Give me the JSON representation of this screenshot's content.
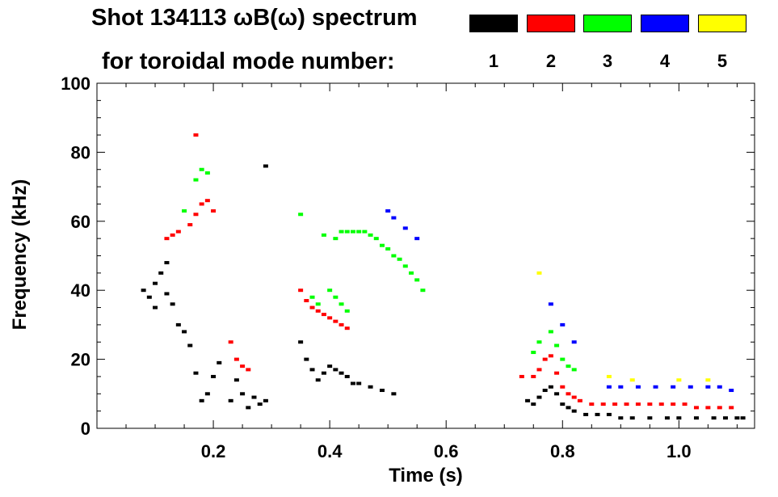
{
  "title": {
    "line1": "Shot 134113 ωB(ω) spectrum",
    "line2": "for toroidal mode number:"
  },
  "legend": [
    {
      "label": "1",
      "color": "#000000"
    },
    {
      "label": "2",
      "color": "#ff0000"
    },
    {
      "label": "3",
      "color": "#00ff00"
    },
    {
      "label": "4",
      "color": "#0000ff"
    },
    {
      "label": "5",
      "color": "#ffff00"
    }
  ],
  "chart_data": {
    "type": "scatter",
    "title": "Shot 134113 ωB(ω) spectrum for toroidal mode number:",
    "xlabel": "Time (s)",
    "ylabel": "Frequency (kHz)",
    "xlim": [
      0.0,
      1.13
    ],
    "ylim": [
      0,
      100
    ],
    "xticks": [
      "0.2",
      "0.4",
      "0.6",
      "0.8",
      "1.0"
    ],
    "xtick_values": [
      0.2,
      0.4,
      0.6,
      0.8,
      1.0
    ],
    "yticks": [
      "0",
      "20",
      "40",
      "60",
      "80",
      "100"
    ],
    "ytick_values": [
      0,
      20,
      40,
      60,
      80,
      100
    ],
    "grid": false,
    "legend_position": "top-right",
    "series": [
      {
        "name": "1",
        "color": "#000000",
        "points": [
          [
            0.08,
            40
          ],
          [
            0.09,
            38
          ],
          [
            0.1,
            42
          ],
          [
            0.1,
            35
          ],
          [
            0.11,
            45
          ],
          [
            0.12,
            39
          ],
          [
            0.12,
            48
          ],
          [
            0.13,
            36
          ],
          [
            0.14,
            30
          ],
          [
            0.15,
            28
          ],
          [
            0.16,
            24
          ],
          [
            0.17,
            16
          ],
          [
            0.18,
            8
          ],
          [
            0.19,
            10
          ],
          [
            0.2,
            15
          ],
          [
            0.21,
            19
          ],
          [
            0.23,
            8
          ],
          [
            0.24,
            14
          ],
          [
            0.25,
            10
          ],
          [
            0.26,
            6
          ],
          [
            0.27,
            9
          ],
          [
            0.28,
            7
          ],
          [
            0.29,
            8
          ],
          [
            0.29,
            76
          ],
          [
            0.35,
            25
          ],
          [
            0.36,
            20
          ],
          [
            0.37,
            17
          ],
          [
            0.38,
            14
          ],
          [
            0.39,
            16
          ],
          [
            0.4,
            18
          ],
          [
            0.41,
            17
          ],
          [
            0.42,
            16
          ],
          [
            0.43,
            15
          ],
          [
            0.44,
            13
          ],
          [
            0.45,
            13
          ],
          [
            0.47,
            12
          ],
          [
            0.49,
            11
          ],
          [
            0.51,
            10
          ],
          [
            0.74,
            8
          ],
          [
            0.75,
            7
          ],
          [
            0.76,
            9
          ],
          [
            0.77,
            11
          ],
          [
            0.78,
            12
          ],
          [
            0.79,
            10
          ],
          [
            0.8,
            7
          ],
          [
            0.81,
            6
          ],
          [
            0.82,
            5
          ],
          [
            0.84,
            4
          ],
          [
            0.86,
            4
          ],
          [
            0.88,
            4
          ],
          [
            0.9,
            3
          ],
          [
            0.92,
            3
          ],
          [
            0.95,
            3
          ],
          [
            0.98,
            3
          ],
          [
            1.0,
            3
          ],
          [
            1.03,
            3
          ],
          [
            1.06,
            3
          ],
          [
            1.08,
            3
          ],
          [
            1.1,
            3
          ],
          [
            1.11,
            3
          ]
        ]
      },
      {
        "name": "2",
        "color": "#ff0000",
        "points": [
          [
            0.12,
            55
          ],
          [
            0.13,
            56
          ],
          [
            0.14,
            57
          ],
          [
            0.16,
            59
          ],
          [
            0.17,
            62
          ],
          [
            0.18,
            65
          ],
          [
            0.19,
            66
          ],
          [
            0.2,
            63
          ],
          [
            0.17,
            85
          ],
          [
            0.23,
            25
          ],
          [
            0.24,
            20
          ],
          [
            0.25,
            18
          ],
          [
            0.26,
            17
          ],
          [
            0.35,
            40
          ],
          [
            0.36,
            37
          ],
          [
            0.37,
            35
          ],
          [
            0.38,
            34
          ],
          [
            0.39,
            33
          ],
          [
            0.4,
            32
          ],
          [
            0.41,
            31
          ],
          [
            0.42,
            30
          ],
          [
            0.43,
            29
          ],
          [
            0.73,
            15
          ],
          [
            0.75,
            15
          ],
          [
            0.76,
            17
          ],
          [
            0.77,
            20
          ],
          [
            0.78,
            21
          ],
          [
            0.79,
            16
          ],
          [
            0.8,
            12
          ],
          [
            0.81,
            10
          ],
          [
            0.82,
            9
          ],
          [
            0.83,
            8
          ],
          [
            0.85,
            7
          ],
          [
            0.87,
            7
          ],
          [
            0.89,
            7
          ],
          [
            0.91,
            7
          ],
          [
            0.93,
            7
          ],
          [
            0.95,
            7
          ],
          [
            0.97,
            7
          ],
          [
            0.99,
            7
          ],
          [
            1.01,
            7
          ],
          [
            1.03,
            6
          ],
          [
            1.05,
            6
          ],
          [
            1.07,
            6
          ],
          [
            1.09,
            6
          ]
        ]
      },
      {
        "name": "3",
        "color": "#00ff00",
        "points": [
          [
            0.15,
            63
          ],
          [
            0.17,
            72
          ],
          [
            0.18,
            75
          ],
          [
            0.19,
            74
          ],
          [
            0.35,
            62
          ],
          [
            0.37,
            38
          ],
          [
            0.38,
            36
          ],
          [
            0.4,
            40
          ],
          [
            0.41,
            38
          ],
          [
            0.42,
            36
          ],
          [
            0.43,
            34
          ],
          [
            0.39,
            56
          ],
          [
            0.41,
            55
          ],
          [
            0.42,
            57
          ],
          [
            0.43,
            57
          ],
          [
            0.44,
            57
          ],
          [
            0.45,
            57
          ],
          [
            0.46,
            57
          ],
          [
            0.47,
            56
          ],
          [
            0.48,
            55
          ],
          [
            0.49,
            53
          ],
          [
            0.5,
            52
          ],
          [
            0.51,
            50
          ],
          [
            0.52,
            49
          ],
          [
            0.53,
            47
          ],
          [
            0.54,
            45
          ],
          [
            0.55,
            43
          ],
          [
            0.56,
            40
          ],
          [
            0.75,
            22
          ],
          [
            0.76,
            25
          ],
          [
            0.78,
            28
          ],
          [
            0.79,
            24
          ],
          [
            0.8,
            20
          ],
          [
            0.81,
            18
          ],
          [
            0.82,
            17
          ]
        ]
      },
      {
        "name": "4",
        "color": "#0000ff",
        "points": [
          [
            0.5,
            63
          ],
          [
            0.51,
            61
          ],
          [
            0.53,
            58
          ],
          [
            0.55,
            55
          ],
          [
            0.78,
            36
          ],
          [
            0.8,
            30
          ],
          [
            0.82,
            25
          ],
          [
            0.88,
            12
          ],
          [
            0.9,
            12
          ],
          [
            0.93,
            12
          ],
          [
            0.96,
            12
          ],
          [
            0.99,
            12
          ],
          [
            1.02,
            12
          ],
          [
            1.05,
            12
          ],
          [
            1.07,
            12
          ],
          [
            1.09,
            11
          ]
        ]
      },
      {
        "name": "5",
        "color": "#ffff00",
        "points": [
          [
            0.76,
            45
          ],
          [
            0.88,
            15
          ],
          [
            0.92,
            14
          ],
          [
            1.0,
            14
          ],
          [
            1.05,
            14
          ]
        ]
      }
    ]
  }
}
